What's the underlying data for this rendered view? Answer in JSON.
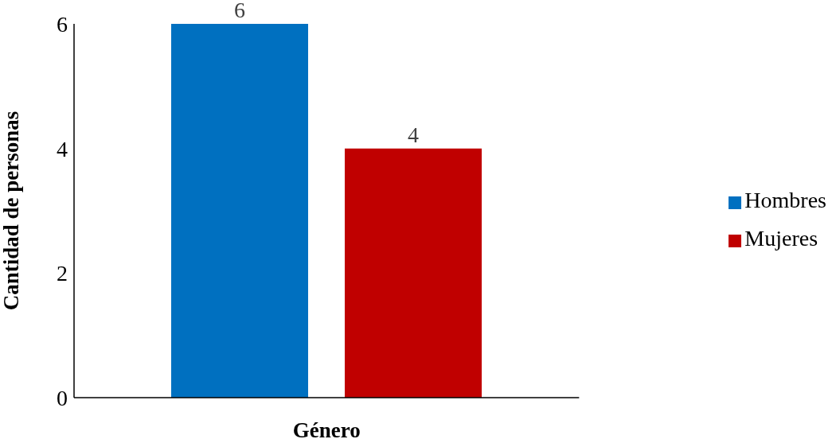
{
  "chart_data": {
    "type": "bar",
    "xlabel": "Género",
    "ylabel": "Cantidad de personas",
    "categories": [
      null
    ],
    "series": [
      {
        "name": "Hombres",
        "color": "#0070c0",
        "values": [
          6
        ]
      },
      {
        "name": "Mujeres",
        "color": "#c00000",
        "values": [
          4
        ]
      }
    ],
    "ylim": [
      0,
      6
    ],
    "yticks": [
      0,
      2,
      4,
      6
    ],
    "grid": false,
    "legend": "right",
    "data_labels": true
  }
}
